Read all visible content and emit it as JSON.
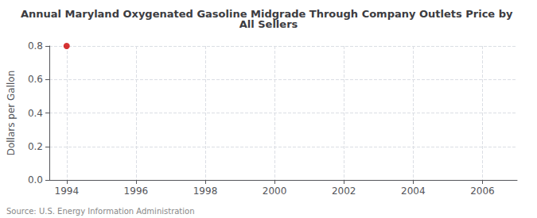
{
  "chart_data": {
    "type": "scatter",
    "title": "Annual Maryland Oxygenated Gasoline Midgrade Through Company Outlets Price by All Sellers",
    "ylabel": "Dollars per Gallon",
    "source": "Source: U.S. Energy Information Administration",
    "x": [
      1994
    ],
    "values": [
      0.8
    ],
    "color": "#cc0000",
    "xlim": [
      1993.5,
      2007.0
    ],
    "xticks": [
      1994,
      1996,
      1998,
      2000,
      2002,
      2004,
      2006
    ],
    "ylim": [
      0.0,
      0.8
    ],
    "yticks": [
      {
        "value": 0.0,
        "label": "0.0"
      },
      0.2,
      0.4,
      0.6,
      0.8
    ],
    "grid": true
  }
}
